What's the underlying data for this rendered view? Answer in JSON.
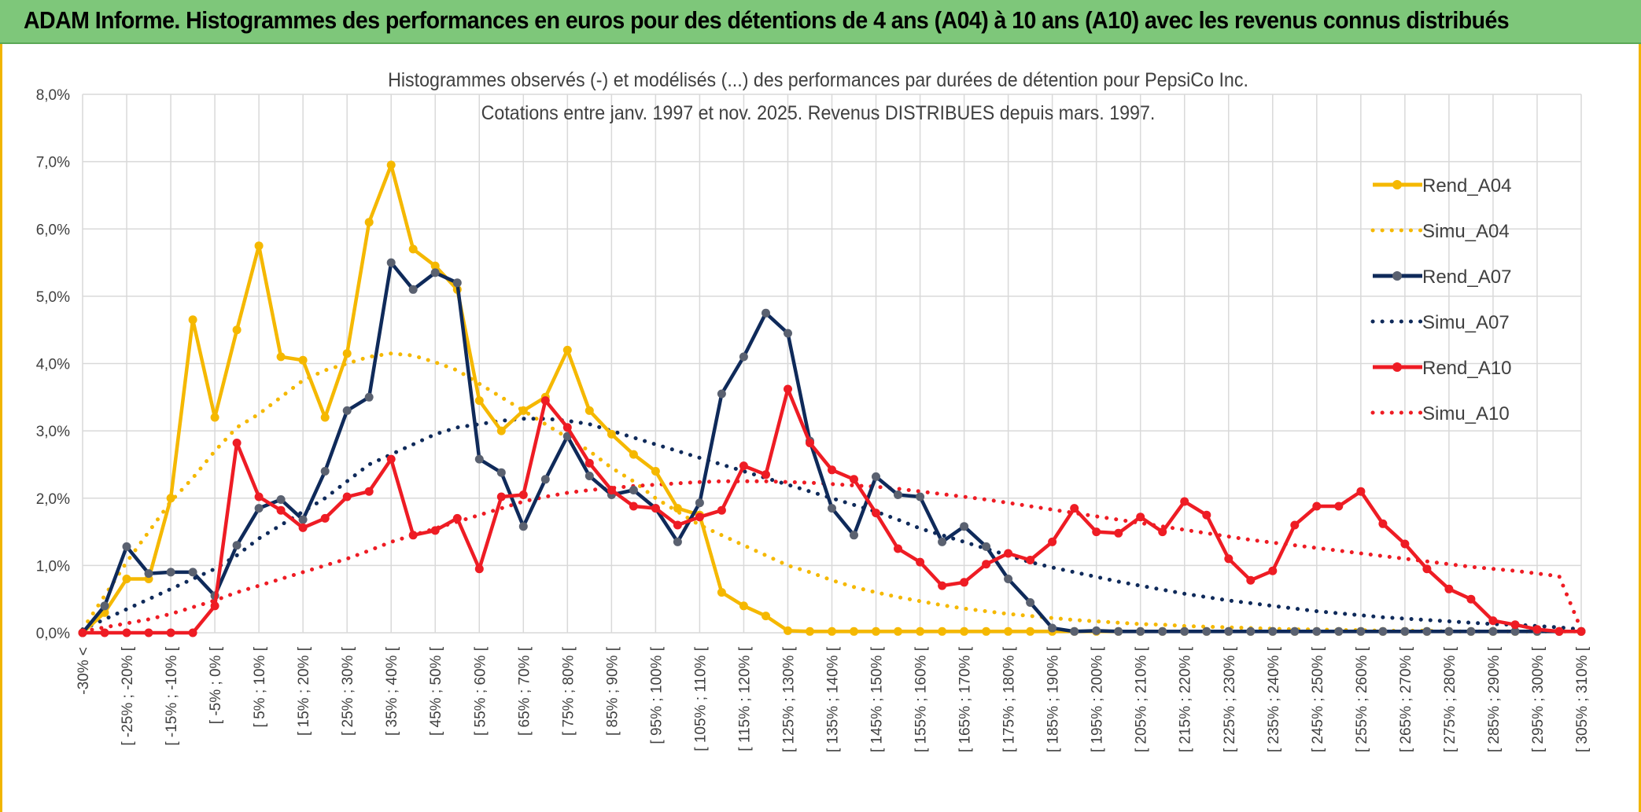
{
  "header": {
    "banner_title": "ADAM Informe. Histogrammes des performances en euros pour des détentions de 4 ans (A04) à 10 ans (A10) avec les revenus connus distribués"
  },
  "chart_data": {
    "type": "line",
    "title": "Histogrammes observés (-) et modélisés (...) des performances par durées de détention pour PepsiCo Inc.",
    "subtitle": "Cotations entre janv. 1997 et nov. 2025. Revenus DISTRIBUES depuis mars. 1997.",
    "xlabel": "",
    "ylabel": "",
    "ylim": [
      0,
      8
    ],
    "y_ticks": [
      "0,0%",
      "1,0%",
      "2,0%",
      "3,0%",
      "4,0%",
      "5,0%",
      "6,0%",
      "7,0%",
      "8,0%"
    ],
    "grid": true,
    "legend_position": "right",
    "categories_count": 69,
    "x_labels": [
      "-30% <",
      "[ -25% ; -20% [",
      "[ -15% ; -10% [",
      "[ -5% ; 0% [",
      "[ 5% ; 10% [",
      "[ 15% ; 20% [",
      "[ 25% ; 30% [",
      "[ 35% ; 40% [",
      "[ 45% ; 50% [",
      "[ 55% ; 60% [",
      "[ 65% ; 70% [",
      "[ 75% ; 80% [",
      "[ 85% ; 90% [",
      "[ 95% ; 100% [",
      "[ 105% ; 110% [",
      "[ 115% ; 120% [",
      "[ 125% ; 130% [",
      "[ 135% ; 140% [",
      "[ 145% ; 150% [",
      "[ 155% ; 160% [",
      "[ 165% ; 170% [",
      "[ 175% ; 180% [",
      "[ 185% ; 190% [",
      "[ 195% ; 200% [",
      "[ 205% ; 210% [",
      "[ 215% ; 220% [",
      "[ 225% ; 230% [",
      "[ 235% ; 240% [",
      "[ 245% ; 250% [",
      "[ 255% ; 260% [",
      "[ 265% ; 270% [",
      "[ 275% ; 280% [",
      "[ 285% ; 290% [",
      "[ 295% ; 300% [",
      "[ 305% ; 310% ["
    ],
    "series": [
      {
        "name": "Rend_A04",
        "color": "#f5b800",
        "style": "solid",
        "values": [
          0.0,
          0.3,
          0.8,
          0.8,
          2.0,
          4.65,
          3.2,
          4.5,
          5.75,
          4.1,
          4.05,
          3.2,
          4.15,
          6.1,
          6.95,
          5.7,
          5.45,
          5.1,
          3.45,
          3.0,
          3.3,
          3.5,
          4.2,
          3.3,
          2.95,
          2.65,
          2.4,
          1.85,
          1.75,
          0.6,
          0.4,
          0.25,
          0.03,
          0.02,
          0.02,
          0.02,
          0.02,
          0.02,
          0.02,
          0.02,
          0.02,
          0.02,
          0.02,
          0.02,
          0.02,
          0.02,
          0.02,
          0.02,
          0.02,
          0.02,
          0.02,
          0.02,
          0.02,
          0.02,
          0.02,
          0.02,
          0.02,
          0.02,
          0.02,
          0.02,
          0.02,
          0.02,
          0.02,
          0.02,
          0.02,
          0.02,
          0.02,
          0.02,
          0.02
        ]
      },
      {
        "name": "Simu_A04",
        "color": "#f5b800",
        "style": "dotted",
        "values": [
          0.05,
          0.55,
          1.05,
          1.5,
          1.95,
          2.3,
          2.7,
          3.05,
          3.25,
          3.5,
          3.75,
          3.9,
          4.0,
          4.1,
          4.15,
          4.12,
          4.02,
          3.9,
          3.7,
          3.5,
          3.3,
          3.1,
          2.9,
          2.7,
          2.45,
          2.25,
          2.0,
          1.8,
          1.6,
          1.45,
          1.3,
          1.15,
          1.0,
          0.9,
          0.78,
          0.68,
          0.6,
          0.53,
          0.47,
          0.41,
          0.36,
          0.32,
          0.28,
          0.25,
          0.22,
          0.19,
          0.17,
          0.15,
          0.13,
          0.12,
          0.1,
          0.09,
          0.08,
          0.07,
          0.06,
          0.05,
          0.05,
          0.04,
          0.04,
          0.03,
          0.03,
          0.03,
          0.02,
          0.02,
          0.02,
          0.02,
          0.02,
          0.02,
          0.02
        ]
      },
      {
        "name": "Rend_A07",
        "color": "#0f2a5a",
        "style": "solid",
        "values": [
          0.0,
          0.4,
          1.28,
          0.88,
          0.9,
          0.9,
          0.55,
          1.3,
          1.85,
          1.98,
          1.68,
          2.4,
          3.3,
          3.5,
          5.5,
          5.1,
          5.35,
          5.2,
          2.58,
          2.38,
          1.58,
          2.28,
          2.92,
          2.33,
          2.05,
          2.12,
          1.85,
          1.35,
          1.93,
          3.55,
          4.1,
          4.75,
          4.45,
          2.85,
          1.85,
          1.45,
          2.32,
          2.05,
          2.02,
          1.35,
          1.58,
          1.28,
          0.8,
          0.45,
          0.07,
          0.02,
          0.03,
          0.02,
          0.02,
          0.02,
          0.02,
          0.02,
          0.02,
          0.02,
          0.02,
          0.02,
          0.02,
          0.02,
          0.02,
          0.02,
          0.02,
          0.02,
          0.02,
          0.02,
          0.02,
          0.02,
          0.02,
          0.02,
          0.02
        ]
      },
      {
        "name": "Simu_A07",
        "color": "#0f2a5a",
        "style": "dotted",
        "values": [
          0.05,
          0.2,
          0.35,
          0.5,
          0.65,
          0.8,
          0.95,
          1.15,
          1.4,
          1.6,
          1.8,
          2.0,
          2.25,
          2.5,
          2.65,
          2.8,
          2.95,
          3.05,
          3.1,
          3.15,
          3.18,
          3.18,
          3.15,
          3.1,
          3.0,
          2.9,
          2.8,
          2.7,
          2.6,
          2.5,
          2.4,
          2.3,
          2.2,
          2.1,
          2.0,
          1.9,
          1.8,
          1.68,
          1.55,
          1.45,
          1.35,
          1.25,
          1.15,
          1.05,
          0.97,
          0.9,
          0.83,
          0.76,
          0.7,
          0.64,
          0.58,
          0.53,
          0.48,
          0.44,
          0.4,
          0.36,
          0.32,
          0.29,
          0.26,
          0.23,
          0.21,
          0.19,
          0.17,
          0.15,
          0.13,
          0.12,
          0.1,
          0.08,
          0.05
        ]
      },
      {
        "name": "Rend_A10",
        "color": "#ee1c24",
        "style": "solid",
        "values": [
          0.0,
          0.0,
          0.0,
          0.0,
          0.0,
          0.0,
          0.4,
          2.82,
          2.02,
          1.82,
          1.56,
          1.7,
          2.02,
          2.1,
          2.58,
          1.45,
          1.52,
          1.7,
          0.95,
          2.02,
          2.05,
          3.45,
          3.05,
          2.52,
          2.12,
          1.88,
          1.85,
          1.6,
          1.72,
          1.82,
          2.48,
          2.35,
          3.62,
          2.82,
          2.42,
          2.28,
          1.78,
          1.25,
          1.05,
          0.7,
          0.75,
          1.02,
          1.18,
          1.08,
          1.35,
          1.85,
          1.5,
          1.48,
          1.72,
          1.5,
          1.95,
          1.75,
          1.1,
          0.78,
          0.92,
          1.6,
          1.88,
          1.88,
          2.1,
          1.62,
          1.32,
          0.95,
          0.65,
          0.5,
          0.18,
          0.12,
          0.05,
          0.02,
          0.02
        ]
      },
      {
        "name": "Simu_A10",
        "color": "#ee1c24",
        "style": "dotted",
        "values": [
          0.02,
          0.08,
          0.14,
          0.2,
          0.28,
          0.38,
          0.48,
          0.6,
          0.7,
          0.8,
          0.9,
          1.0,
          1.1,
          1.22,
          1.35,
          1.45,
          1.55,
          1.65,
          1.75,
          1.85,
          1.95,
          2.02,
          2.08,
          2.12,
          2.15,
          2.18,
          2.2,
          2.22,
          2.24,
          2.25,
          2.25,
          2.25,
          2.24,
          2.23,
          2.21,
          2.19,
          2.17,
          2.14,
          2.1,
          2.06,
          2.02,
          1.98,
          1.93,
          1.88,
          1.83,
          1.78,
          1.73,
          1.68,
          1.63,
          1.58,
          1.53,
          1.48,
          1.43,
          1.38,
          1.34,
          1.3,
          1.26,
          1.22,
          1.18,
          1.14,
          1.1,
          1.06,
          1.02,
          0.98,
          0.95,
          0.92,
          0.88,
          0.84,
          0.05
        ]
      }
    ]
  }
}
